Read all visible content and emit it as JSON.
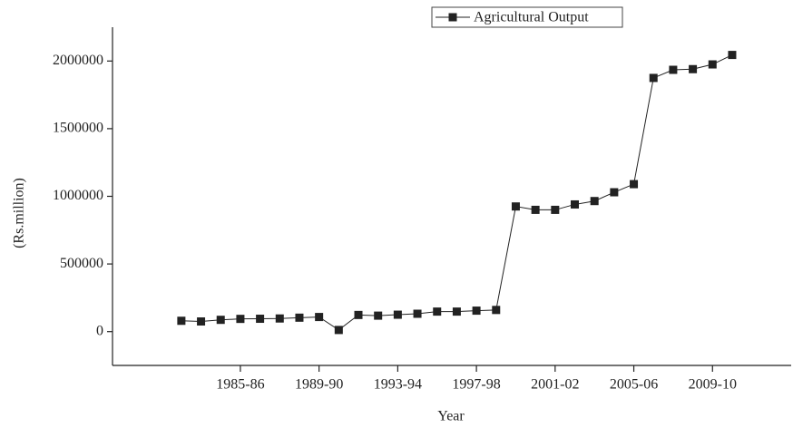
{
  "chart_data": {
    "type": "line",
    "xlabel": "Year",
    "ylabel": "(Rs.million)",
    "x": [
      1982,
      1983,
      1984,
      1985,
      1986,
      1987,
      1988,
      1989,
      1990,
      1991,
      1992,
      1993,
      1994,
      1995,
      1996,
      1997,
      1998,
      1999,
      2000,
      2001,
      2002,
      2003,
      2004,
      2005,
      2006,
      2007,
      2008,
      2009,
      2010
    ],
    "series": [
      {
        "name": "Agricultural Output",
        "color": "#222222",
        "values": [
          80000,
          75000,
          87000,
          94000,
          95000,
          97000,
          103000,
          108000,
          12000,
          123000,
          118000,
          125000,
          132000,
          148000,
          148000,
          155000,
          160000,
          925000,
          900000,
          900000,
          940000,
          965000,
          1030000,
          1090000,
          1875000,
          1935000,
          1940000,
          1975000,
          2045000
        ]
      }
    ],
    "xlim": [
      1978.5,
      2013
    ],
    "xticks": [
      {
        "value": 1985,
        "label": "1985-86"
      },
      {
        "value": 1989,
        "label": "1989-90"
      },
      {
        "value": 1993,
        "label": "1993-94"
      },
      {
        "value": 1997,
        "label": "1997-98"
      },
      {
        "value": 2001,
        "label": "2001-02"
      },
      {
        "value": 2005,
        "label": "2005-06"
      },
      {
        "value": 2009,
        "label": "2009-10"
      }
    ],
    "ylim": [
      -250000,
      2250000
    ],
    "yticks": [
      0,
      500000,
      1000000,
      1500000,
      2000000
    ],
    "legend": "top"
  }
}
